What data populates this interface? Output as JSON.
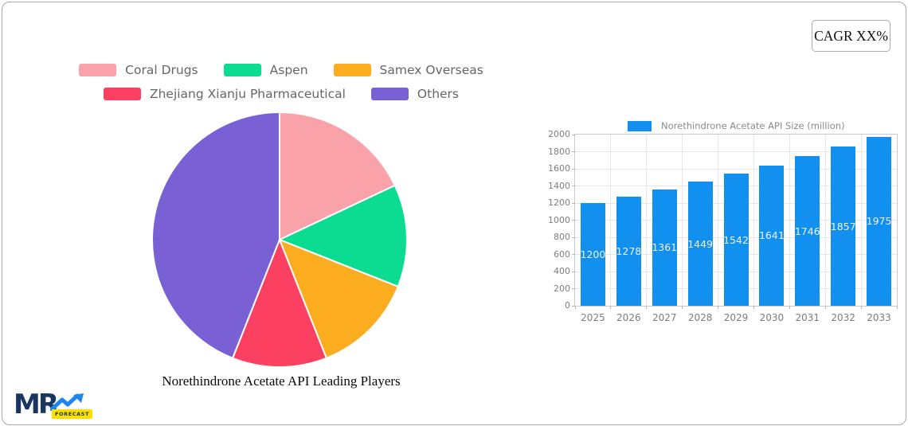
{
  "cagr_button": {
    "label": "CAGR XX%"
  },
  "logo": {
    "brand": "MR",
    "badge": "FORECAST",
    "brand_color": "#18365f",
    "arrow_color": "#1d87ee",
    "badge_bg": "#ffdf00",
    "badge_text_color": "#18365f"
  },
  "chart_data": [
    {
      "type": "pie",
      "title": "Norethindrone Acetate API Leading Players",
      "legend_position": "top",
      "legend_rows": [
        [
          0,
          1,
          2
        ],
        [
          3,
          4
        ]
      ],
      "start_angle_deg": 0,
      "slice_border_color": "#ffffff",
      "slices": [
        {
          "label": "Coral Drugs",
          "value": 18,
          "color": "#f9a2aa"
        },
        {
          "label": "Aspen",
          "value": 13,
          "color": "#0cdc92"
        },
        {
          "label": "Samex Overseas",
          "value": 13,
          "color": "#fcad1f"
        },
        {
          "label": "Zhejiang Xianju Pharmaceutical",
          "value": 12,
          "color": "#fc4062"
        },
        {
          "label": "Others",
          "value": 44,
          "color": "#7a60d5"
        }
      ]
    },
    {
      "type": "bar",
      "legend_label": "Norethindrone Acetate API Size (million)",
      "categories": [
        "2025",
        "2026",
        "2027",
        "2028",
        "2029",
        "2030",
        "2031",
        "2032",
        "2033"
      ],
      "values": [
        1200,
        1278,
        1361,
        1449,
        1542,
        1641,
        1746,
        1857,
        1975
      ],
      "ylim": [
        0,
        2000
      ],
      "ytick_step": 200,
      "grid": true,
      "bar_color": "#1190f0",
      "value_label_color": "#edf3f9"
    }
  ]
}
